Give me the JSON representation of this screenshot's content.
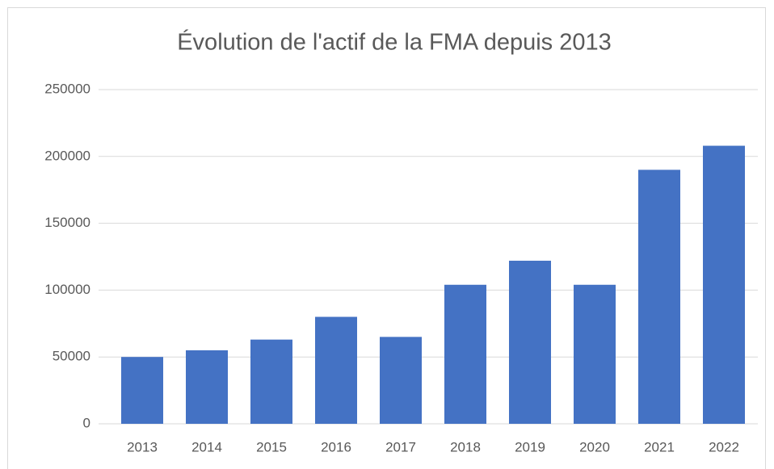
{
  "chart_data": {
    "type": "bar",
    "title": "Évolution de l'actif de la FMA depuis 2013",
    "categories": [
      "2013",
      "2014",
      "2015",
      "2016",
      "2017",
      "2018",
      "2019",
      "2020",
      "2021",
      "2022"
    ],
    "values": [
      50000,
      55000,
      63000,
      80000,
      65000,
      104000,
      122000,
      104000,
      190000,
      208000
    ],
    "color": "#4472c4",
    "ylim": [
      0,
      250000
    ],
    "yticks": [
      0,
      50000,
      100000,
      150000,
      200000,
      250000
    ],
    "grid": true
  }
}
